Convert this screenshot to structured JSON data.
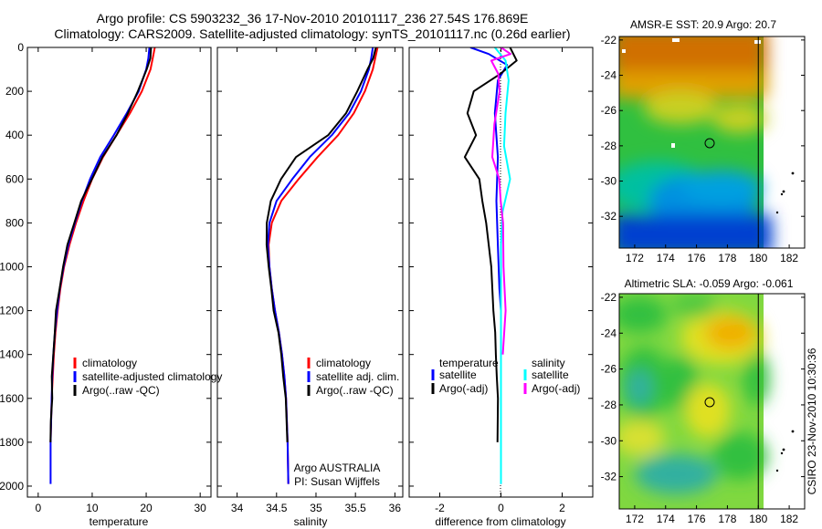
{
  "header": {
    "line1": "Argo profile: CS 5903232_36 17-Nov-2010 20101117_236 27.54S 176.869E",
    "line2": "Climatology: CARS2009. Satellite-adjusted climatology: synTS_20101117.nc (0.26d earlier)"
  },
  "colors": {
    "climatology": "#ff0000",
    "satellite": "#0000ff",
    "argo": "#000000",
    "sal_satellite": "#00ffff",
    "sal_argo": "#ff00ff"
  },
  "credits": {
    "institution": "Argo AUSTRALIA",
    "pi": "PI: Susan Wijffels",
    "side_stamp": "CSIRO 23-Nov-2010 10:30:36"
  },
  "chart_data": [
    {
      "type": "line",
      "id": "temperature",
      "xlabel": "temperature",
      "ylabel": "",
      "xlim": [
        -2,
        32
      ],
      "ylim": [
        2050,
        0
      ],
      "xticks": [
        0,
        10,
        20,
        30
      ],
      "yticks": [
        0,
        200,
        400,
        600,
        800,
        1000,
        1200,
        1400,
        1600,
        1800,
        2000
      ],
      "legend": [
        "climatology",
        "satellite-adjusted climatology",
        "Argo(..raw -QC)"
      ],
      "series": [
        {
          "name": "climatology",
          "color": "#ff0000",
          "x": [
            21.6,
            21.2,
            20.8,
            19.2,
            17.0,
            14.5,
            12.0,
            10.0,
            8.4,
            7.0,
            5.8,
            4.8,
            4.1,
            3.6,
            3.2,
            2.9,
            2.7,
            2.5,
            2.4,
            2.3
          ],
          "y": [
            0,
            50,
            100,
            200,
            300,
            400,
            500,
            600,
            700,
            800,
            900,
            1000,
            1100,
            1200,
            1300,
            1400,
            1500,
            1600,
            1700,
            1800
          ]
        },
        {
          "name": "satellite-adjusted climatology",
          "color": "#0000ff",
          "x": [
            20.6,
            20.4,
            20.0,
            18.6,
            16.4,
            14.0,
            11.5,
            9.6,
            8.1,
            6.8,
            5.6,
            4.7,
            4.0,
            3.5,
            3.1,
            2.8,
            2.6,
            2.5,
            2.4,
            2.3,
            2.3
          ],
          "y": [
            0,
            50,
            100,
            200,
            300,
            400,
            500,
            600,
            700,
            800,
            900,
            1000,
            1100,
            1200,
            1300,
            1400,
            1500,
            1600,
            1700,
            1800,
            1990
          ]
        },
        {
          "name": "Argo(..raw -QC)",
          "color": "#000000",
          "x": [
            20.9,
            20.7,
            20.2,
            18.4,
            16.6,
            14.6,
            11.8,
            10.0,
            8.0,
            6.6,
            5.5,
            4.6,
            3.9,
            3.4,
            3.0,
            2.8,
            2.6,
            2.5,
            2.4,
            2.3
          ],
          "y": [
            0,
            50,
            100,
            200,
            300,
            400,
            500,
            600,
            700,
            800,
            900,
            1000,
            1100,
            1200,
            1300,
            1400,
            1500,
            1600,
            1700,
            1800
          ]
        }
      ]
    },
    {
      "type": "line",
      "id": "salinity",
      "xlabel": "salinity",
      "ylabel": "",
      "xlim": [
        33.75,
        36.1
      ],
      "ylim": [
        2050,
        0
      ],
      "xticks": [
        34,
        34.5,
        35,
        35.5,
        36
      ],
      "ytick_labels_hidden": true,
      "legend": [
        "climatology",
        "satellite adj. clim.",
        "Argo(..raw -QC)"
      ],
      "series": [
        {
          "name": "climatology",
          "color": "#ff0000",
          "x": [
            35.78,
            35.75,
            35.72,
            35.62,
            35.48,
            35.28,
            35.02,
            34.78,
            34.56,
            34.44,
            34.4,
            34.41,
            34.44,
            34.48,
            34.53,
            34.57,
            34.6,
            34.62,
            34.64,
            34.65
          ],
          "y": [
            0,
            50,
            100,
            200,
            300,
            400,
            500,
            600,
            700,
            800,
            900,
            1000,
            1100,
            1200,
            1300,
            1400,
            1500,
            1600,
            1800,
            1990
          ]
        },
        {
          "name": "satellite adj. clim.",
          "color": "#0000ff",
          "x": [
            35.72,
            35.7,
            35.67,
            35.57,
            35.42,
            35.2,
            34.92,
            34.7,
            34.5,
            34.41,
            34.39,
            34.41,
            34.44,
            34.48,
            34.53,
            34.57,
            34.6,
            34.62,
            34.64,
            34.65
          ],
          "y": [
            0,
            50,
            100,
            200,
            300,
            400,
            500,
            600,
            700,
            800,
            900,
            1000,
            1100,
            1200,
            1300,
            1400,
            1500,
            1600,
            1800,
            1990
          ]
        },
        {
          "name": "Argo(..raw -QC)",
          "color": "#000000",
          "x": [
            35.76,
            35.72,
            35.66,
            35.52,
            35.38,
            35.16,
            34.74,
            34.56,
            34.43,
            34.37,
            34.38,
            34.4,
            34.43,
            34.47,
            34.52,
            34.56,
            34.59,
            34.61,
            34.64
          ],
          "y": [
            0,
            50,
            100,
            200,
            300,
            400,
            500,
            600,
            700,
            800,
            900,
            1000,
            1100,
            1200,
            1300,
            1400,
            1500,
            1600,
            1800
          ]
        }
      ]
    },
    {
      "type": "line",
      "id": "difference",
      "xlabel": "difference from climatology",
      "ylabel": "",
      "xlim": [
        -3,
        3
      ],
      "ylim": [
        2050,
        0
      ],
      "xticks": [
        -2,
        0,
        2
      ],
      "legend_groups": {
        "temperature": [
          "satellite",
          "Argo(-adj)"
        ],
        "salinity": [
          "satellite",
          "Argo(-adj)"
        ]
      },
      "series": [
        {
          "name": "temperature satellite",
          "color": "#0000ff",
          "x": [
            -1.0,
            -0.4,
            0.2,
            -0.1,
            -0.2,
            -0.1,
            -0.15,
            -0.1,
            -0.05,
            0.0,
            0.0,
            0.0,
            0.0,
            0.0,
            0.0,
            0.0,
            0.0,
            0.0
          ],
          "y": [
            0,
            30,
            80,
            150,
            300,
            500,
            700,
            900,
            1100,
            1200,
            1300,
            1400,
            1500,
            1600,
            1700,
            1800,
            1900,
            1990
          ]
        },
        {
          "name": "temperature Argo(-adj)",
          "color": "#000000",
          "x": [
            0.3,
            0.5,
            0.0,
            -0.9,
            -1.1,
            -0.8,
            -1.2,
            -0.7,
            -0.6,
            -0.5,
            -0.3,
            -0.25,
            -0.2,
            -0.15,
            -0.15,
            -0.1,
            -0.1
          ],
          "y": [
            0,
            60,
            120,
            200,
            300,
            400,
            500,
            600,
            700,
            800,
            1000,
            1200,
            1300,
            1400,
            1500,
            1600,
            1800
          ]
        },
        {
          "name": "salinity satellite",
          "color": "#00ffff",
          "x": [
            -0.2,
            0.15,
            0.25,
            0.15,
            0.1,
            0.3,
            0.05,
            0.0,
            0.0,
            0.0,
            0.0,
            0.0
          ],
          "y": [
            0,
            60,
            150,
            300,
            450,
            600,
            750,
            900,
            1100,
            1300,
            1600,
            1990
          ]
        },
        {
          "name": "salinity Argo(-adj)",
          "color": "#ff00ff",
          "x": [
            0.0,
            0.3,
            -0.3,
            -0.1,
            -0.05,
            -0.2,
            -0.3,
            -0.05,
            0.0,
            0.05,
            0.1,
            0.15,
            0.05
          ],
          "y": [
            0,
            30,
            60,
            120,
            200,
            350,
            500,
            600,
            700,
            800,
            1000,
            1200,
            1400
          ]
        }
      ]
    },
    {
      "type": "heatmap",
      "id": "sst_map",
      "title": "AMSR-E SST: 20.9 Argo: 20.7",
      "xlim": [
        171,
        183
      ],
      "ylim": [
        -33.8,
        -21.8
      ],
      "xticks": [
        172,
        174,
        176,
        178,
        180,
        182
      ],
      "yticks": [
        -22,
        -24,
        -26,
        -28,
        -30,
        -32
      ],
      "argo_position": {
        "lon": 176.869,
        "lat": -27.54
      },
      "colors": [
        "#d07000",
        "#e0a000",
        "#c8d020",
        "#30c040",
        "#00c0a0",
        "#0090e0",
        "#0040d0"
      ]
    },
    {
      "type": "heatmap",
      "id": "sla_map",
      "title": "Altimetric SLA: -0.059 Argo: -0.061",
      "xlim": [
        171,
        183
      ],
      "ylim": [
        -33.8,
        -21.8
      ],
      "xticks": [
        172,
        174,
        176,
        178,
        180,
        182
      ],
      "yticks": [
        -22,
        -24,
        -26,
        -28,
        -30,
        -32
      ],
      "argo_position": {
        "lon": 176.869,
        "lat": -27.54
      },
      "colors": [
        "#f0b000",
        "#e0e020",
        "#90e040",
        "#30c040",
        "#30b0a0"
      ]
    }
  ]
}
